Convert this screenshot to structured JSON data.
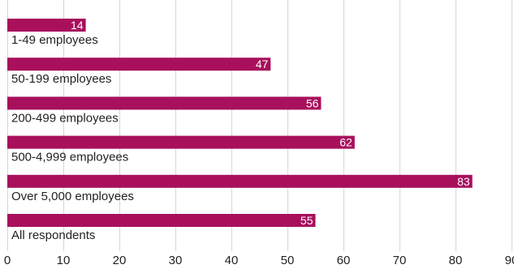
{
  "chart_data": {
    "type": "bar",
    "orientation": "horizontal",
    "categories": [
      "1-49 employees",
      "50-199 employees",
      "200-499 employees",
      "500-4,999 employees",
      "Over 5,000 employees",
      "All respondents"
    ],
    "values": [
      14,
      47,
      56,
      62,
      83,
      55
    ],
    "value_labels": [
      "14",
      "47",
      "56",
      "62",
      "83",
      "55"
    ],
    "xlim": [
      0,
      90
    ],
    "x_ticks": [
      0,
      10,
      20,
      30,
      40,
      50,
      60,
      70,
      80,
      90
    ],
    "x_tick_labels": [
      "0",
      "10",
      "20",
      "30",
      "40",
      "50",
      "60",
      "70",
      "80",
      "90"
    ],
    "grid": "vertical",
    "bar_color": "#a8105c",
    "label_color": "#ffffff",
    "text_color": "#222222",
    "gridline_color": "#d6d6d6"
  }
}
